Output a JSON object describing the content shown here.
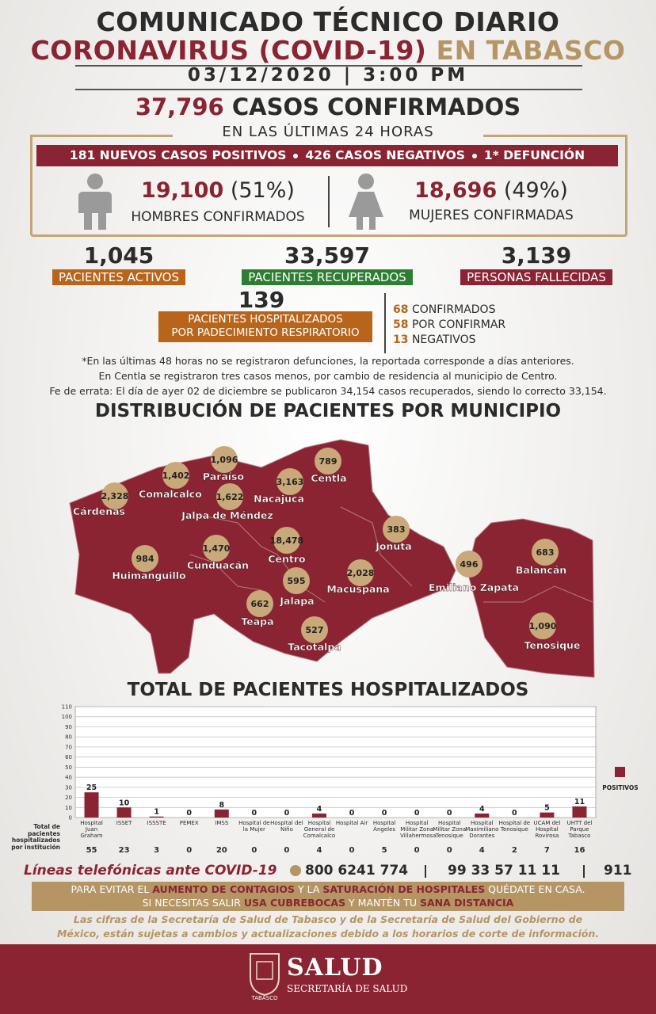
{
  "header": {
    "title": "COMUNICADO TÉCNICO DIARIO",
    "subtitle_main": "CORONAVIRUS (COVID-19)",
    "subtitle_place": "EN TABASCO",
    "date": "03/12/2020 | 3:00 PM"
  },
  "confirmed": {
    "number": "37,796",
    "label": "CASOS CONFIRMADOS",
    "period": "EN LAS ÚLTIMAS 24 HORAS",
    "banner": [
      "181 NUEVOS CASOS POSITIVOS",
      "426 CASOS NEGATIVOS",
      "1* DEFUNCIÓN"
    ],
    "men": {
      "number": "19,100",
      "percent": "(51%)",
      "label": "HOMBRES CONFIRMADOS"
    },
    "women": {
      "number": "18,696",
      "percent": "(49%)",
      "label": "MUJERES CONFIRMADAS"
    }
  },
  "stats": [
    {
      "number": "1,045",
      "label": "PACIENTES ACTIVOS",
      "color": "#b8651b"
    },
    {
      "number": "33,597",
      "label": "PACIENTES RECUPERADOS",
      "color": "#2e7d32"
    },
    {
      "number": "3,139",
      "label": "PERSONAS FALLECIDAS",
      "color": "#8a2432"
    }
  ],
  "hospitalized": {
    "number": "139",
    "label": [
      "PACIENTES HOSPITALIZADOS",
      "POR PADECIMIENTO RESPIRATORIO"
    ],
    "breakdown": [
      {
        "count": "68",
        "label": "CONFIRMADOS"
      },
      {
        "count": "58",
        "label": "POR CONFIRMAR"
      },
      {
        "count": "13",
        "label": "NEGATIVOS"
      }
    ]
  },
  "notes": [
    "*En las últimas 48 horas no se registraron defunciones, la reportada corresponde a días anteriores.",
    "En Centla se registraron tres casos menos, por cambio de residencia al municipio de Centro.",
    "Fe de errata: El día de ayer 02 de diciembre se publicaron 34,154 casos recuperados, siendo lo correcto 33,154."
  ],
  "map": {
    "title": "DISTRIBUCIÓN DE PACIENTES POR MUNICIPIO",
    "municipalities": [
      {
        "name": "Cárdenas",
        "count": "2,328"
      },
      {
        "name": "Comalcalco",
        "count": "1,402"
      },
      {
        "name": "Paraíso",
        "count": "1,096"
      },
      {
        "name": "Jalpa de Méndez",
        "count": "1,622"
      },
      {
        "name": "Nacajuca",
        "count": "3,163"
      },
      {
        "name": "Centla",
        "count": "789"
      },
      {
        "name": "Centro",
        "count": "18,478"
      },
      {
        "name": "Cunduacán",
        "count": "1,470"
      },
      {
        "name": "Huimanguillo",
        "count": "984"
      },
      {
        "name": "Jonuta",
        "count": "383"
      },
      {
        "name": "Macuspana",
        "count": "2,028"
      },
      {
        "name": "Jalapa",
        "count": "595"
      },
      {
        "name": "Teapa",
        "count": "662"
      },
      {
        "name": "Tacotalpa",
        "count": "527"
      },
      {
        "name": "Emiliano Zapata",
        "count": "496"
      },
      {
        "name": "Balancán",
        "count": "683"
      },
      {
        "name": "Tenosique",
        "count": "1,090"
      }
    ]
  },
  "chart_data": {
    "type": "bar",
    "title": "TOTAL DE PACIENTES HOSPITALIZADOS",
    "categories": [
      "Hospital Juan Graham",
      "ISSET",
      "ISSSTE",
      "PEMEX",
      "IMSS",
      "Hospital de la Mujer",
      "Hospital del Niño",
      "Hospital General de Comalcalco",
      "Hospital Air",
      "Hospital Ángeles",
      "Hospital Militar Zona Villahermosa",
      "Hospital Militar Zona Tenosique",
      "Hospital Maximiliano Dorantes",
      "Hospital de Tenosique",
      "UCAM del Hospital Rovirosa",
      "UHTT del Parque Tabasco"
    ],
    "series": [
      {
        "name": "POSITIVOS",
        "color": "#8a2432",
        "values": [
          25,
          10,
          1,
          0,
          8,
          0,
          0,
          4,
          0,
          0,
          0,
          0,
          4,
          0,
          5,
          11
        ]
      }
    ],
    "ylim": [
      0,
      110
    ],
    "yticks": [
      0,
      10,
      20,
      30,
      40,
      50,
      60,
      70,
      80,
      90,
      100,
      110
    ],
    "grid": true,
    "legend": "right"
  },
  "hospital_totals": {
    "label": "Total de pacientes hospitalizados por institución",
    "values": [
      55,
      23,
      3,
      0,
      20,
      0,
      0,
      4,
      0,
      5,
      0,
      0,
      4,
      2,
      7,
      16
    ]
  },
  "hotlines": {
    "label": "Líneas telefónicas ante COVID-19",
    "numbers": [
      "800 6241 774",
      "99 33 57 11 11",
      "911"
    ]
  },
  "advice": [
    [
      {
        "text": "PARA EVITAR EL ",
        "emphasis": false
      },
      {
        "text": "AUMENTO DE CONTAGIOS",
        "emphasis": true
      },
      {
        "text": " Y LA ",
        "emphasis": false
      },
      {
        "text": "SATURACIÓN DE HOSPITALES",
        "emphasis": true
      },
      {
        "text": " QUÉDATE EN CASA.",
        "emphasis": false
      }
    ],
    [
      {
        "text": "SI NECESITAS SALIR ",
        "emphasis": false
      },
      {
        "text": "USA CUBREBOCAS",
        "emphasis": true
      },
      {
        "text": " Y MANTÉN TU ",
        "emphasis": false
      },
      {
        "text": "SANA DISTANCIA",
        "emphasis": true
      }
    ]
  ],
  "disclaimer": [
    "Las cifras de la Secretaría de Salud de Tabasco y de la Secretaría de Salud del Gobierno de",
    "México, están sujetas a cambios y actualizaciones debido a los horarios de corte de información."
  ],
  "footer": {
    "logo_caption": "TABASCO",
    "brand": "SALUD",
    "agency": "SECRETARÍA DE SALUD"
  }
}
